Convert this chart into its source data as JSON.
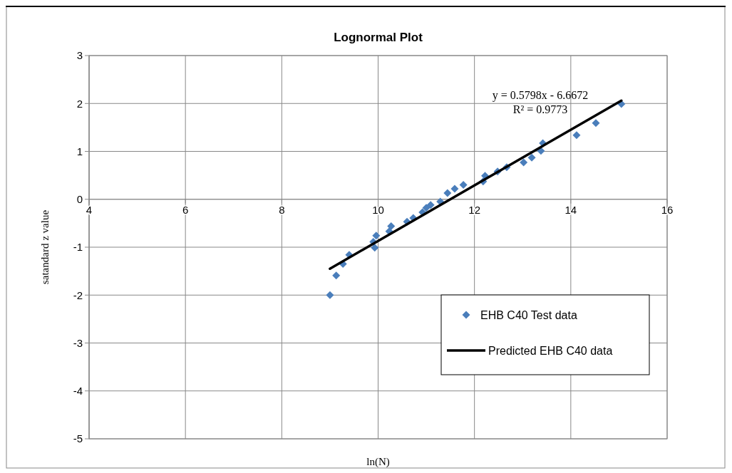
{
  "chart_data": {
    "type": "scatter",
    "title": "Lognormal Plot",
    "xlabel": "ln(N)",
    "ylabel": "satandard z value",
    "xlim": [
      4,
      16
    ],
    "xticks": [
      4,
      6,
      8,
      10,
      12,
      14,
      16
    ],
    "ylim": [
      -5,
      3
    ],
    "yticks": [
      -5,
      -4,
      -3,
      -2,
      -1,
      0,
      1,
      2,
      3
    ],
    "grid": true,
    "legend": "bottom right",
    "annotations": [
      "y = 0.5798x - 6.6672",
      "R² = 0.9773"
    ],
    "series": [
      {
        "name": "EHB C40 Test data",
        "marker": "diamond",
        "color": "#4a7ebb",
        "x": [
          9.0,
          9.13,
          9.27,
          9.4,
          9.9,
          9.93,
          9.96,
          10.23,
          10.27,
          10.6,
          10.73,
          10.92,
          11.0,
          11.09,
          11.29,
          11.44,
          11.59,
          11.77,
          12.18,
          12.22,
          12.48,
          12.67,
          13.02,
          13.19,
          13.38,
          13.42,
          14.12,
          14.52,
          15.05
        ],
        "values": [
          -2.0,
          -1.59,
          -1.35,
          -1.16,
          -0.89,
          -1.01,
          -0.76,
          -0.67,
          -0.56,
          -0.47,
          -0.39,
          -0.27,
          -0.18,
          -0.12,
          -0.05,
          0.13,
          0.22,
          0.3,
          0.37,
          0.49,
          0.58,
          0.67,
          0.77,
          0.87,
          1.01,
          1.17,
          1.34,
          1.59,
          1.99
        ]
      },
      {
        "name": "Predicted EHB C40 data",
        "type": "line",
        "marker": "none",
        "color": "#000000",
        "x": [
          9.0,
          15.05
        ],
        "values": [
          -1.45,
          2.06
        ]
      }
    ]
  }
}
